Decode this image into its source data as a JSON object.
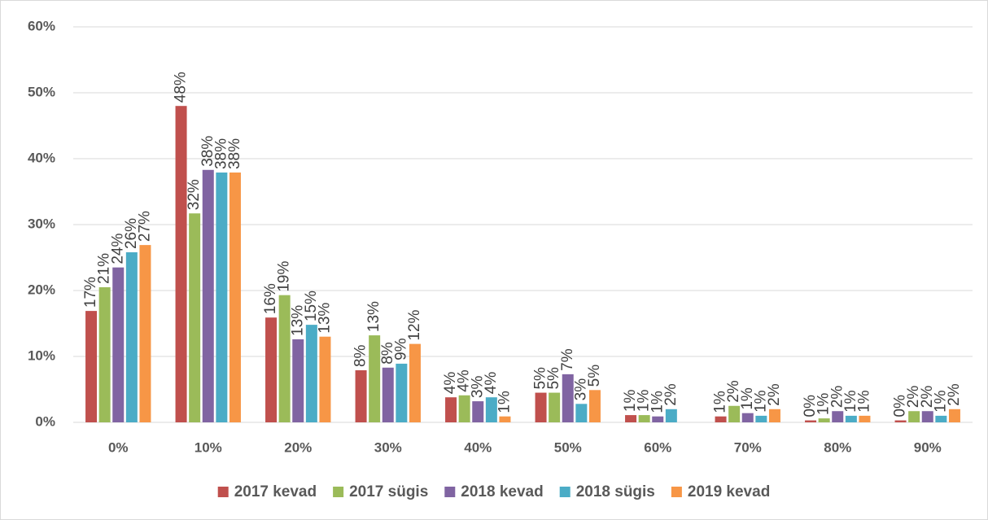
{
  "chart_data": {
    "type": "bar",
    "categories": [
      "0%",
      "10%",
      "20%",
      "30%",
      "40%",
      "50%",
      "60%",
      "70%",
      "80%",
      "90%"
    ],
    "ylim": [
      0,
      60
    ],
    "yticks": [
      {
        "value": 0,
        "label": "0%"
      },
      {
        "value": 10,
        "label": "10%"
      },
      {
        "value": 20,
        "label": "20%"
      },
      {
        "value": 30,
        "label": "30%"
      },
      {
        "value": 40,
        "label": "40%"
      },
      {
        "value": 50,
        "label": "50%"
      },
      {
        "value": 60,
        "label": "60%"
      }
    ],
    "grid": true,
    "legend": "bottom",
    "series": [
      {
        "name": "2017 kevad",
        "color": "#c0504d",
        "values": [
          16.9,
          48.0,
          15.9,
          7.9,
          3.8,
          4.5,
          1.1,
          0.9,
          0.3,
          0.3
        ],
        "value_labels": [
          "17%",
          "48%",
          "16%",
          "8%",
          "4%",
          "5%",
          "1%",
          "1%",
          "0%",
          "0%"
        ]
      },
      {
        "name": "2017 sügis",
        "color": "#9bbb59",
        "values": [
          20.5,
          31.7,
          19.3,
          13.2,
          4.1,
          4.5,
          1.1,
          2.5,
          0.6,
          1.7
        ],
        "value_labels": [
          "21%",
          "32%",
          "19%",
          "13%",
          "4%",
          "5%",
          "1%",
          "2%",
          "1%",
          "2%"
        ]
      },
      {
        "name": "2018 kevad",
        "color": "#8064a2",
        "values": [
          23.5,
          38.3,
          12.6,
          8.3,
          3.2,
          7.3,
          0.9,
          1.4,
          1.7,
          1.7
        ],
        "value_labels": [
          "24%",
          "38%",
          "13%",
          "8%",
          "3%",
          "7%",
          "1%",
          "1%",
          "2%",
          "2%"
        ]
      },
      {
        "name": "2018 sügis",
        "color": "#4bacc6",
        "values": [
          25.8,
          37.9,
          14.8,
          8.9,
          3.8,
          2.8,
          2.0,
          1.0,
          1.0,
          1.0
        ],
        "value_labels": [
          "26%",
          "38%",
          "15%",
          "9%",
          "4%",
          "3%",
          "2%",
          "1%",
          "1%",
          "1%"
        ]
      },
      {
        "name": "2019 kevad",
        "color": "#f79646",
        "values": [
          26.9,
          37.9,
          13.0,
          11.9,
          0.9,
          4.9,
          null,
          2.0,
          1.0,
          2.0
        ],
        "value_labels": [
          "27%",
          "38%",
          "13%",
          "12%",
          "1%",
          "5%",
          null,
          "2%",
          "1%",
          "2%"
        ]
      }
    ]
  }
}
